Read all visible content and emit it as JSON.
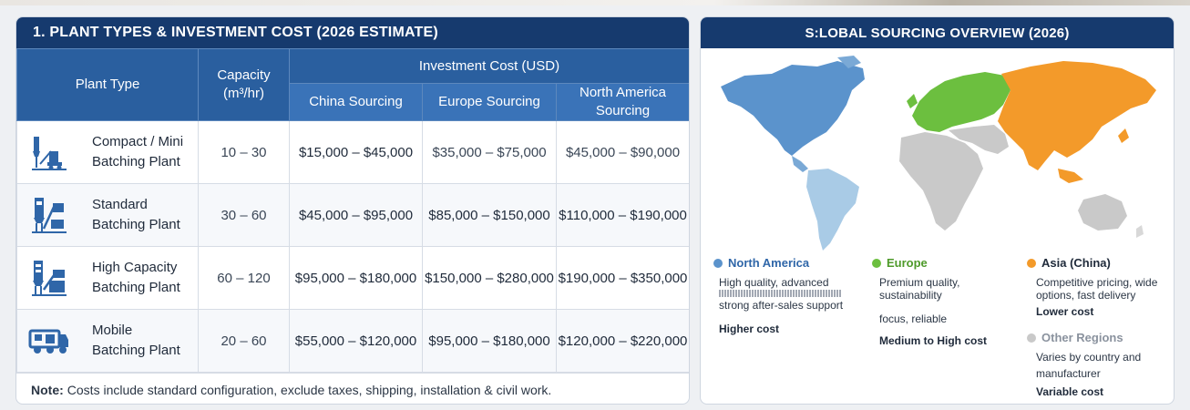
{
  "left_panel": {
    "title": "1. PLANT TYPES & INVESTMENT COST (2026 ESTIMATE)",
    "headers": {
      "plant_type": "Plant Type",
      "capacity_line1": "Capacity",
      "capacity_line2": "(m³/hr)",
      "investment": "Investment Cost (USD)",
      "china": "China Sourcing",
      "europe": "Europe Sourcing",
      "na_line1": "North America",
      "na_line2": "Sourcing"
    },
    "rows": [
      {
        "icon": "compact-plant-icon",
        "name1": "Compact / Mini",
        "name2": "Batching Plant",
        "capacity": "10 – 30",
        "china": "$15,000 – $45,000",
        "europe": "$35,000 – $75,000",
        "na": "$45,000 – $90,000"
      },
      {
        "icon": "standard-plant-icon",
        "name1": "Standard",
        "name2": "Batching Plant",
        "capacity": "30 – 60",
        "china": "$45,000 – $95,000",
        "europe": "$85,000 – $150,000",
        "na": "$110,000 – $190,000"
      },
      {
        "icon": "high-capacity-plant-icon",
        "name1": "High Capacity",
        "name2": "Batching Plant",
        "capacity": "60 – 120",
        "china": "$95,000 – $180,000",
        "europe": "$150,000 – $280,000",
        "na": "$190,000 – $350,000"
      },
      {
        "icon": "mobile-plant-icon",
        "name1": "Mobile",
        "name2": "Batching Plant",
        "capacity": "20 – 60",
        "china": "$55,000 – $120,000",
        "europe": "$95,000 – $180,000",
        "na": "$120,000 – $220,000"
      }
    ],
    "note_label": "Note:",
    "note_text": "Costs include standard configuration, exclude taxes, shipping, installation & civil work."
  },
  "right_panel": {
    "title": "S:LOBAL SOURCING OVERVIEW (2026)",
    "colors": {
      "north_america": "#5b93cc",
      "europe": "#6cbf3f",
      "asia": "#f39a2a",
      "other": "#c9c9c9"
    },
    "regions": {
      "north_america": {
        "name": "North America",
        "line1": "High quality, advanced",
        "line2": "strong after-sales support",
        "cost": "Higher cost"
      },
      "europe": {
        "name": "Europe",
        "line1": "Premium quality, sustainability",
        "line2": "focus, reliable",
        "cost": "Medium to High cost"
      },
      "asia": {
        "name": "Asia (China)",
        "line1": "Competitive pricing, wide",
        "line2": "options, fast delivery",
        "cost": "Lower cost"
      },
      "other": {
        "name": "Other Regions",
        "line1": "Varies by country and",
        "line2": "manufacturer",
        "cost": "Variable cost"
      }
    }
  }
}
